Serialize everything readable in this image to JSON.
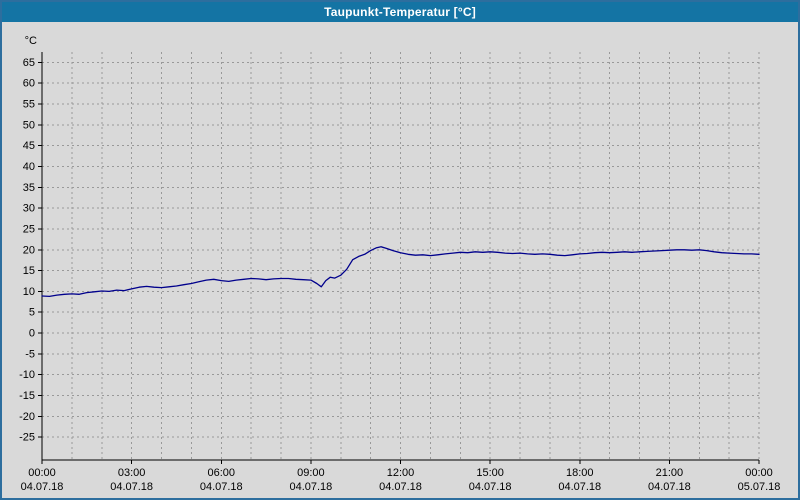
{
  "window": {
    "title": "Taupunkt-Temperatur [°C]"
  },
  "colors": {
    "titlebar": "#1474a4",
    "titlebar_text": "#ffffff",
    "window_border": "#2d6e9e",
    "background": "#d9d9d9",
    "grid": "#999999",
    "axis": "#000000",
    "series_line": "#00008c"
  },
  "chart_data": {
    "type": "line",
    "title": "Taupunkt-Temperatur [°C]",
    "xlabel": "",
    "ylabel": "°C",
    "ylim": [
      -30.5,
      67.5
    ],
    "yticks": [
      65,
      60,
      55,
      50,
      45,
      40,
      35,
      30,
      25,
      20,
      15,
      10,
      5,
      0,
      -5,
      -10,
      -15,
      -20,
      -25
    ],
    "xlim_hours": [
      0,
      24
    ],
    "x_grid_step_hours": 1,
    "grid": "dashed",
    "legend_position": "none",
    "xticks": [
      {
        "hour": 0,
        "time": "00:00",
        "date": "04.07.18"
      },
      {
        "hour": 3,
        "time": "03:00",
        "date": "04.07.18"
      },
      {
        "hour": 6,
        "time": "06:00",
        "date": "04.07.18"
      },
      {
        "hour": 9,
        "time": "09:00",
        "date": "04.07.18"
      },
      {
        "hour": 12,
        "time": "12:00",
        "date": "04.07.18"
      },
      {
        "hour": 15,
        "time": "15:00",
        "date": "04.07.18"
      },
      {
        "hour": 18,
        "time": "18:00",
        "date": "04.07.18"
      },
      {
        "hour": 21,
        "time": "21:00",
        "date": "04.07.18"
      },
      {
        "hour": 24,
        "time": "00:00",
        "date": "05.07.18"
      }
    ],
    "series": [
      {
        "name": "Taupunkt-Temperatur",
        "color": "#00008c",
        "points": [
          [
            0,
            8.9
          ],
          [
            0.25,
            8.8
          ],
          [
            0.5,
            9.1
          ],
          [
            0.75,
            9.3
          ],
          [
            1,
            9.4
          ],
          [
            1.25,
            9.3
          ],
          [
            1.5,
            9.7
          ],
          [
            1.75,
            9.9
          ],
          [
            2,
            10.1
          ],
          [
            2.25,
            10.0
          ],
          [
            2.5,
            10.3
          ],
          [
            2.75,
            10.2
          ],
          [
            3,
            10.6
          ],
          [
            3.25,
            11.0
          ],
          [
            3.5,
            11.2
          ],
          [
            3.75,
            11.0
          ],
          [
            4,
            10.9
          ],
          [
            4.25,
            11.1
          ],
          [
            4.5,
            11.3
          ],
          [
            4.75,
            11.6
          ],
          [
            5,
            11.9
          ],
          [
            5.25,
            12.3
          ],
          [
            5.5,
            12.7
          ],
          [
            5.75,
            12.9
          ],
          [
            6,
            12.6
          ],
          [
            6.25,
            12.4
          ],
          [
            6.5,
            12.7
          ],
          [
            6.75,
            12.9
          ],
          [
            7,
            13.1
          ],
          [
            7.25,
            13.0
          ],
          [
            7.5,
            12.8
          ],
          [
            7.75,
            13.0
          ],
          [
            8,
            13.1
          ],
          [
            8.25,
            13.1
          ],
          [
            8.5,
            12.9
          ],
          [
            8.75,
            12.8
          ],
          [
            9,
            12.7
          ],
          [
            9.2,
            11.9
          ],
          [
            9.35,
            11.1
          ],
          [
            9.5,
            12.6
          ],
          [
            9.65,
            13.4
          ],
          [
            9.8,
            13.2
          ],
          [
            10,
            13.9
          ],
          [
            10.2,
            15.3
          ],
          [
            10.4,
            17.6
          ],
          [
            10.6,
            18.4
          ],
          [
            10.8,
            18.9
          ],
          [
            11,
            19.8
          ],
          [
            11.2,
            20.5
          ],
          [
            11.35,
            20.7
          ],
          [
            11.5,
            20.4
          ],
          [
            11.75,
            19.8
          ],
          [
            12,
            19.3
          ],
          [
            12.25,
            18.9
          ],
          [
            12.5,
            18.7
          ],
          [
            12.75,
            18.8
          ],
          [
            13,
            18.6
          ],
          [
            13.25,
            18.8
          ],
          [
            13.5,
            19.0
          ],
          [
            13.75,
            19.2
          ],
          [
            14,
            19.4
          ],
          [
            14.25,
            19.3
          ],
          [
            14.5,
            19.5
          ],
          [
            14.75,
            19.4
          ],
          [
            15,
            19.5
          ],
          [
            15.25,
            19.4
          ],
          [
            15.5,
            19.2
          ],
          [
            15.75,
            19.1
          ],
          [
            16,
            19.2
          ],
          [
            16.25,
            19.0
          ],
          [
            16.5,
            18.9
          ],
          [
            16.75,
            19.0
          ],
          [
            17,
            18.9
          ],
          [
            17.25,
            18.7
          ],
          [
            17.5,
            18.6
          ],
          [
            17.75,
            18.8
          ],
          [
            18,
            19.0
          ],
          [
            18.25,
            19.1
          ],
          [
            18.5,
            19.3
          ],
          [
            18.75,
            19.4
          ],
          [
            19,
            19.3
          ],
          [
            19.25,
            19.4
          ],
          [
            19.5,
            19.5
          ],
          [
            19.75,
            19.4
          ],
          [
            20,
            19.5
          ],
          [
            20.25,
            19.6
          ],
          [
            20.5,
            19.7
          ],
          [
            20.75,
            19.8
          ],
          [
            21,
            19.9
          ],
          [
            21.25,
            20.0
          ],
          [
            21.5,
            20.0
          ],
          [
            21.75,
            19.9
          ],
          [
            22,
            20.0
          ],
          [
            22.25,
            19.8
          ],
          [
            22.5,
            19.5
          ],
          [
            22.75,
            19.3
          ],
          [
            23,
            19.2
          ],
          [
            23.25,
            19.1
          ],
          [
            23.5,
            19.0
          ],
          [
            23.75,
            19.0
          ],
          [
            24,
            18.9
          ]
        ]
      }
    ]
  }
}
